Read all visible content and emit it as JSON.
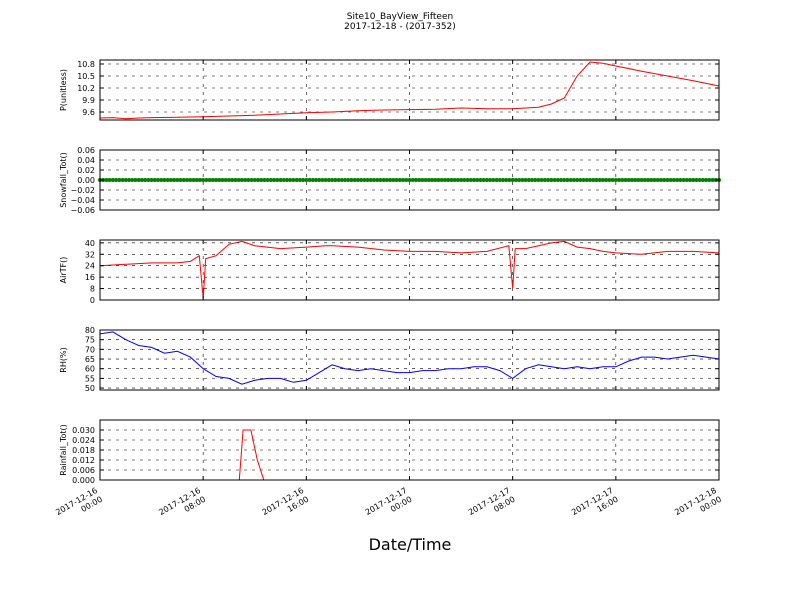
{
  "page": {
    "title": "Site10_BayView_Fifteen",
    "subtitle": "2017-12-18 - (2017-352)",
    "xlabel": "Date/Time",
    "x_tick_labels": [
      [
        "2017-12-16",
        "00:00"
      ],
      [
        "2017-12-16",
        "08:00"
      ],
      [
        "2017-12-16",
        "16:00"
      ],
      [
        "2017-12-17",
        "00:00"
      ],
      [
        "2017-12-17",
        "08:00"
      ],
      [
        "2017-12-17",
        "16:00"
      ],
      [
        "2017-12-18",
        "00:00"
      ]
    ]
  },
  "chart_data": [
    {
      "type": "line",
      "ylabel": "P(unitless)",
      "color": "#ff0000",
      "ylim": [
        9.4,
        10.9
      ],
      "yticks": [
        "9.6",
        "9.9",
        "10.2",
        "10.5",
        "10.8"
      ],
      "x_hours": [
        0,
        1,
        2,
        3,
        4,
        6,
        8,
        10,
        12,
        14,
        16,
        18,
        20,
        22,
        24,
        26,
        28,
        30,
        32,
        34,
        35,
        36,
        37,
        38,
        39,
        40,
        42,
        44,
        46,
        48
      ],
      "values": [
        9.45,
        9.46,
        9.43,
        9.45,
        9.46,
        9.47,
        9.48,
        9.5,
        9.52,
        9.55,
        9.58,
        9.6,
        9.63,
        9.65,
        9.66,
        9.67,
        9.7,
        9.68,
        9.68,
        9.72,
        9.8,
        9.95,
        10.5,
        10.85,
        10.82,
        10.75,
        10.62,
        10.5,
        10.38,
        10.25
      ]
    },
    {
      "type": "scatter",
      "ylabel": "Snowfall_Tot()",
      "color": "#008000",
      "ylim": [
        -0.06,
        0.06
      ],
      "yticks": [
        "−0.06",
        "−0.04",
        "−0.02",
        "0.00",
        "0.02",
        "0.04",
        "0.06"
      ],
      "x_range": [
        0,
        48
      ],
      "constant_value": 0.0
    },
    {
      "type": "line",
      "ylabel": "AirTF()",
      "color": "#ff0000",
      "ylim": [
        0,
        42
      ],
      "yticks": [
        "0",
        "8",
        "16",
        "24",
        "32",
        "40"
      ],
      "x_hours": [
        0,
        2,
        4,
        6,
        7,
        7.7,
        8,
        8.2,
        9,
        9.5,
        10,
        11,
        12,
        14,
        16,
        17.5,
        18,
        20,
        22,
        24,
        26,
        28,
        30,
        31.7,
        32,
        32.2,
        33,
        34,
        35,
        36,
        37,
        38,
        39,
        40,
        42,
        44,
        46,
        48
      ],
      "values": [
        24,
        25,
        26,
        26,
        27,
        31,
        1,
        29,
        31,
        35,
        39,
        41,
        38,
        36,
        37,
        38,
        38,
        37,
        35,
        34,
        34,
        33,
        34,
        38,
        8,
        36,
        36,
        38,
        40,
        41,
        37,
        36,
        34,
        33,
        32,
        34,
        34,
        33
      ]
    },
    {
      "type": "line",
      "ylabel": "RH(%)",
      "color": "#0000ff",
      "ylim": [
        49,
        80
      ],
      "yticks": [
        "50",
        "55",
        "60",
        "65",
        "70",
        "75",
        "80"
      ],
      "x_hours": [
        0,
        1,
        2,
        3,
        4,
        5,
        6,
        7,
        8,
        9,
        10,
        11,
        12,
        13,
        14,
        15,
        16,
        17,
        18,
        19,
        20,
        21,
        22,
        23,
        24,
        25,
        26,
        27,
        28,
        29,
        30,
        31,
        32,
        33,
        34,
        35,
        36,
        37,
        38,
        39,
        40,
        41,
        42,
        43,
        44,
        45,
        46,
        47,
        48
      ],
      "values": [
        78,
        79,
        75,
        72,
        71,
        68,
        69,
        66,
        60,
        56,
        55,
        52,
        54,
        55,
        55,
        53,
        54,
        58,
        62,
        60,
        59,
        60,
        59,
        58,
        58,
        59,
        59,
        60,
        60,
        61,
        61,
        59,
        55,
        60,
        62,
        61,
        60,
        61,
        60,
        61,
        61,
        64,
        66,
        66,
        65,
        66,
        67,
        66,
        65
      ]
    },
    {
      "type": "line",
      "ylabel": "Rainfall_Tot()",
      "color": "#ff0000",
      "ylim": [
        0,
        0.036
      ],
      "yticks": [
        "0.000",
        "0.006",
        "0.012",
        "0.018",
        "0.024",
        "0.030"
      ],
      "x_hours": [
        0,
        10.8,
        11.1,
        11.7,
        12.2,
        12.7,
        13,
        48
      ],
      "values": [
        0,
        0,
        0.03,
        0.03,
        0.012,
        0,
        0,
        0
      ]
    }
  ]
}
